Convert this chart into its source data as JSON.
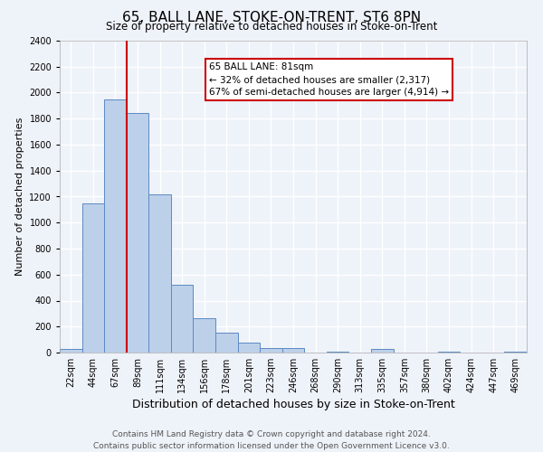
{
  "title": "65, BALL LANE, STOKE-ON-TRENT, ST6 8PN",
  "subtitle": "Size of property relative to detached houses in Stoke-on-Trent",
  "xlabel": "Distribution of detached houses by size in Stoke-on-Trent",
  "ylabel": "Number of detached properties",
  "bin_labels": [
    "22sqm",
    "44sqm",
    "67sqm",
    "89sqm",
    "111sqm",
    "134sqm",
    "156sqm",
    "178sqm",
    "201sqm",
    "223sqm",
    "246sqm",
    "268sqm",
    "290sqm",
    "313sqm",
    "335sqm",
    "357sqm",
    "380sqm",
    "402sqm",
    "424sqm",
    "447sqm",
    "469sqm"
  ],
  "bar_values": [
    25,
    1150,
    1950,
    1840,
    1220,
    520,
    265,
    150,
    75,
    35,
    35,
    2,
    5,
    2,
    30,
    2,
    2,
    10,
    2,
    2,
    10
  ],
  "bar_color": "#bdd0e9",
  "bar_edge_color": "#5b8ac5",
  "ylim": [
    0,
    2400
  ],
  "yticks": [
    0,
    200,
    400,
    600,
    800,
    1000,
    1200,
    1400,
    1600,
    1800,
    2000,
    2200,
    2400
  ],
  "property_line_x": 2.5,
  "property_line_color": "#cc0000",
  "annotation_title": "65 BALL LANE: 81sqm",
  "annotation_line1": "← 32% of detached houses are smaller (2,317)",
  "annotation_line2": "67% of semi-detached houses are larger (4,914) →",
  "annotation_box_color": "#ffffff",
  "annotation_box_edge": "#cc0000",
  "footer1": "Contains HM Land Registry data © Crown copyright and database right 2024.",
  "footer2": "Contains public sector information licensed under the Open Government Licence v3.0.",
  "background_color": "#eef2f9",
  "grid_color": "#ffffff",
  "title_fontsize": 11,
  "subtitle_fontsize": 8.5,
  "xlabel_fontsize": 9,
  "ylabel_fontsize": 8,
  "tick_fontsize": 7,
  "footer_fontsize": 6.5,
  "annotation_fontsize": 7.5
}
